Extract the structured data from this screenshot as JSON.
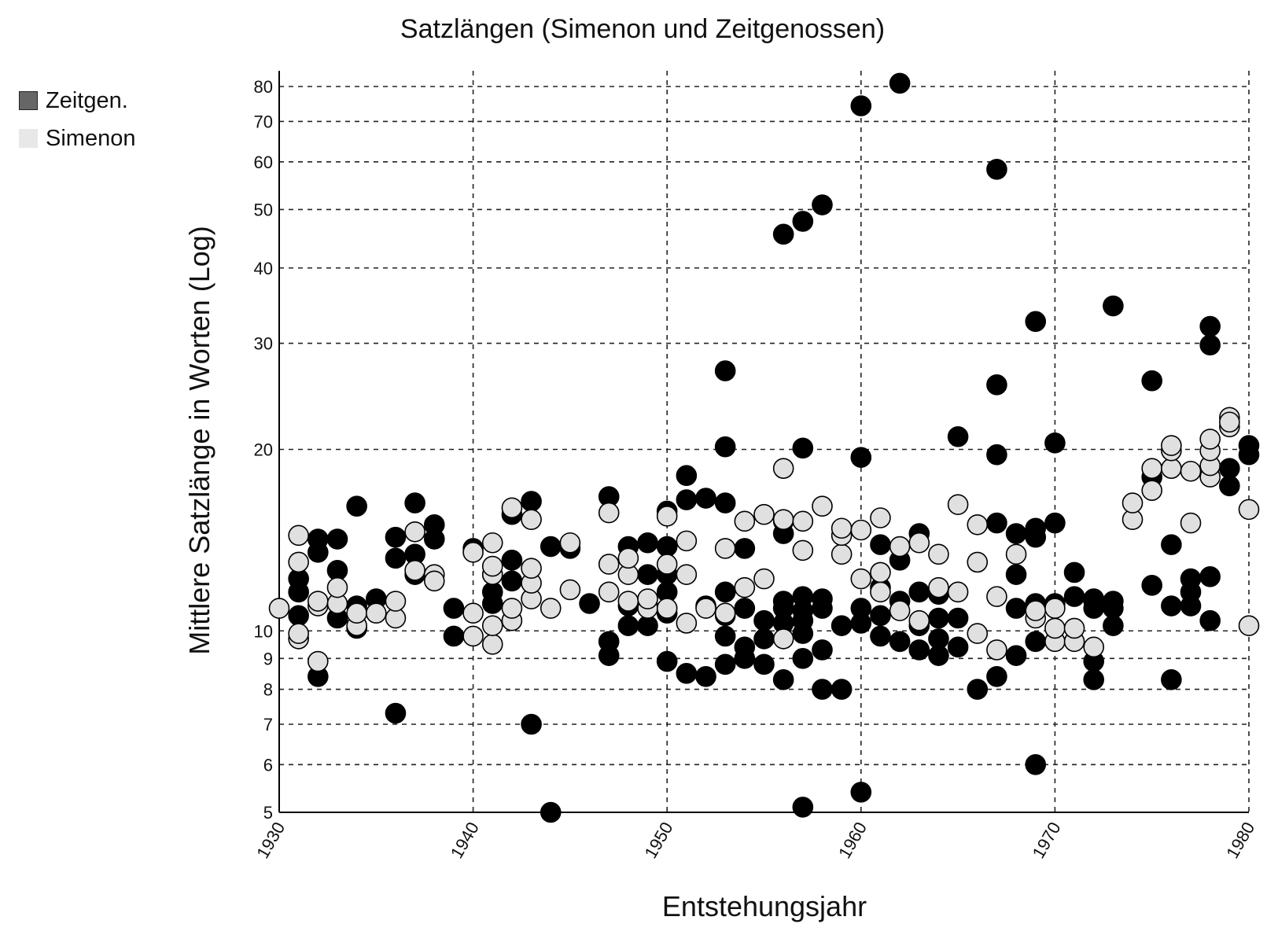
{
  "chart_data": {
    "type": "scatter",
    "title": "Satzlängen (Simenon und Zeitgenossen)",
    "xlabel": "Entstehungsjahr",
    "ylabel": "Mittlere Satzlänge in Worten (Log)",
    "xlim": [
      1930,
      1980
    ],
    "ylim": [
      5,
      82
    ],
    "y_scale": "log",
    "grid": true,
    "legend_position": "left",
    "x_ticks": [
      1930,
      1940,
      1950,
      1960,
      1970,
      1980
    ],
    "x_tick_labels": [
      "1930",
      "1940",
      "1950",
      "1960",
      "1970",
      "1980"
    ],
    "y_ticks": [
      5,
      6,
      7,
      8,
      9,
      10,
      20,
      30,
      40,
      50,
      60,
      70,
      80
    ],
    "y_tick_labels": [
      "5",
      "6",
      "7",
      "8",
      "9",
      "10",
      "20",
      "30",
      "40",
      "50",
      "60",
      "70",
      "80"
    ],
    "series": [
      {
        "name": "Zeitgen.",
        "legend_color": "#666666",
        "marker_color": "#000000",
        "points": [
          [
            1931,
            10.6
          ],
          [
            1931,
            11.6
          ],
          [
            1931,
            12.2
          ],
          [
            1932,
            8.4
          ],
          [
            1932,
            13.5
          ],
          [
            1932,
            14.2
          ],
          [
            1933,
            10.5
          ],
          [
            1933,
            12.6
          ],
          [
            1933,
            14.2
          ],
          [
            1934,
            10.1
          ],
          [
            1934,
            11.0
          ],
          [
            1934,
            16.1
          ],
          [
            1935,
            11.3
          ],
          [
            1936,
            7.3
          ],
          [
            1936,
            13.2
          ],
          [
            1936,
            14.3
          ],
          [
            1937,
            12.4
          ],
          [
            1937,
            13.4
          ],
          [
            1937,
            16.3
          ],
          [
            1938,
            14.2
          ],
          [
            1938,
            15.0
          ],
          [
            1939,
            9.8
          ],
          [
            1939,
            10.9
          ],
          [
            1940,
            13.7
          ],
          [
            1941,
            11.1
          ],
          [
            1941,
            11.6
          ],
          [
            1941,
            12.4
          ],
          [
            1942,
            12.1
          ],
          [
            1942,
            13.1
          ],
          [
            1942,
            15.6
          ],
          [
            1943,
            7.0
          ],
          [
            1943,
            16.4
          ],
          [
            1944,
            5.0
          ],
          [
            1944,
            13.8
          ],
          [
            1945,
            13.7
          ],
          [
            1946,
            11.1
          ],
          [
            1947,
            9.1
          ],
          [
            1947,
            9.6
          ],
          [
            1947,
            16.7
          ],
          [
            1948,
            10.2
          ],
          [
            1948,
            11.0
          ],
          [
            1948,
            13.8
          ],
          [
            1949,
            10.2
          ],
          [
            1949,
            11.0
          ],
          [
            1949,
            12.4
          ],
          [
            1949,
            14.0
          ],
          [
            1950,
            8.9
          ],
          [
            1950,
            10.7
          ],
          [
            1950,
            11.6
          ],
          [
            1950,
            12.4
          ],
          [
            1950,
            13.8
          ],
          [
            1950,
            15.8
          ],
          [
            1951,
            8.5
          ],
          [
            1951,
            16.5
          ],
          [
            1951,
            18.1
          ],
          [
            1952,
            8.4
          ],
          [
            1952,
            11.0
          ],
          [
            1952,
            16.6
          ],
          [
            1953,
            8.8
          ],
          [
            1953,
            9.8
          ],
          [
            1953,
            10.6
          ],
          [
            1953,
            11.6
          ],
          [
            1953,
            16.3
          ],
          [
            1953,
            20.2
          ],
          [
            1953,
            27.0
          ],
          [
            1954,
            9.0
          ],
          [
            1954,
            9.4
          ],
          [
            1954,
            10.9
          ],
          [
            1954,
            13.7
          ],
          [
            1955,
            8.8
          ],
          [
            1955,
            9.7
          ],
          [
            1955,
            10.4
          ],
          [
            1956,
            8.3
          ],
          [
            1956,
            10.3
          ],
          [
            1956,
            10.9
          ],
          [
            1956,
            11.2
          ],
          [
            1956,
            14.5
          ],
          [
            1956,
            15.2
          ],
          [
            1956,
            45.5
          ],
          [
            1957,
            5.1
          ],
          [
            1957,
            9.0
          ],
          [
            1957,
            9.9
          ],
          [
            1957,
            10.4
          ],
          [
            1957,
            10.8
          ],
          [
            1957,
            11.4
          ],
          [
            1957,
            20.1
          ],
          [
            1957,
            47.8
          ],
          [
            1958,
            8.0
          ],
          [
            1958,
            9.3
          ],
          [
            1958,
            10.9
          ],
          [
            1958,
            11.3
          ],
          [
            1958,
            50.9
          ],
          [
            1959,
            8.0
          ],
          [
            1959,
            10.2
          ],
          [
            1960,
            5.4
          ],
          [
            1960,
            10.3
          ],
          [
            1960,
            10.9
          ],
          [
            1960,
            19.4
          ],
          [
            1960,
            74.3
          ],
          [
            1961,
            9.8
          ],
          [
            1961,
            10.6
          ],
          [
            1961,
            11.8
          ],
          [
            1961,
            13.9
          ],
          [
            1962,
            9.6
          ],
          [
            1962,
            11.2
          ],
          [
            1962,
            13.1
          ],
          [
            1962,
            81.0
          ],
          [
            1963,
            9.3
          ],
          [
            1963,
            10.2
          ],
          [
            1963,
            11.6
          ],
          [
            1963,
            14.5
          ],
          [
            1964,
            9.1
          ],
          [
            1964,
            9.7
          ],
          [
            1964,
            10.5
          ],
          [
            1964,
            11.5
          ],
          [
            1965,
            9.4
          ],
          [
            1965,
            10.5
          ],
          [
            1965,
            21.0
          ],
          [
            1966,
            8.0
          ],
          [
            1967,
            8.4
          ],
          [
            1967,
            15.1
          ],
          [
            1967,
            19.6
          ],
          [
            1967,
            25.6
          ],
          [
            1967,
            58.3
          ],
          [
            1968,
            9.1
          ],
          [
            1968,
            10.9
          ],
          [
            1968,
            12.4
          ],
          [
            1968,
            14.5
          ],
          [
            1969,
            6.0
          ],
          [
            1969,
            9.6
          ],
          [
            1969,
            11.1
          ],
          [
            1969,
            14.3
          ],
          [
            1969,
            14.8
          ],
          [
            1969,
            32.6
          ],
          [
            1970,
            11.1
          ],
          [
            1970,
            15.1
          ],
          [
            1970,
            20.5
          ],
          [
            1971,
            11.4
          ],
          [
            1971,
            12.5
          ],
          [
            1972,
            8.3
          ],
          [
            1972,
            8.9
          ],
          [
            1972,
            10.9
          ],
          [
            1972,
            11.2
          ],
          [
            1972,
            11.3
          ],
          [
            1973,
            10.2
          ],
          [
            1973,
            10.9
          ],
          [
            1973,
            11.2
          ],
          [
            1973,
            34.6
          ],
          [
            1975,
            11.9
          ],
          [
            1975,
            18.0
          ],
          [
            1975,
            26.0
          ],
          [
            1976,
            8.3
          ],
          [
            1976,
            11.0
          ],
          [
            1976,
            13.9
          ],
          [
            1977,
            11.0
          ],
          [
            1977,
            11.6
          ],
          [
            1977,
            12.2
          ],
          [
            1978,
            10.4
          ],
          [
            1978,
            12.3
          ],
          [
            1978,
            29.8
          ],
          [
            1978,
            32.0
          ],
          [
            1979,
            17.4
          ],
          [
            1979,
            18.6
          ],
          [
            1980,
            19.6
          ],
          [
            1980,
            20.3
          ]
        ]
      },
      {
        "name": "Simenon",
        "legend_color": "#e8e8e8",
        "marker_color": "#e0e0e0",
        "points": [
          [
            1930,
            10.9
          ],
          [
            1931,
            9.7
          ],
          [
            1931,
            9.9
          ],
          [
            1931,
            13.0
          ],
          [
            1931,
            14.4
          ],
          [
            1932,
            8.9
          ],
          [
            1932,
            11.0
          ],
          [
            1932,
            11.2
          ],
          [
            1933,
            11.1
          ],
          [
            1933,
            11.8
          ],
          [
            1934,
            10.2
          ],
          [
            1934,
            10.7
          ],
          [
            1935,
            10.7
          ],
          [
            1936,
            10.5
          ],
          [
            1936,
            11.2
          ],
          [
            1937,
            12.6
          ],
          [
            1937,
            14.6
          ],
          [
            1938,
            12.4
          ],
          [
            1938,
            12.1
          ],
          [
            1940,
            9.8
          ],
          [
            1940,
            10.7
          ],
          [
            1940,
            13.5
          ],
          [
            1941,
            9.5
          ],
          [
            1941,
            10.2
          ],
          [
            1941,
            12.4
          ],
          [
            1941,
            12.8
          ],
          [
            1941,
            14.0
          ],
          [
            1942,
            10.4
          ],
          [
            1942,
            10.9
          ],
          [
            1942,
            16.0
          ],
          [
            1943,
            11.3
          ],
          [
            1943,
            12.0
          ],
          [
            1943,
            12.7
          ],
          [
            1943,
            15.3
          ],
          [
            1944,
            10.9
          ],
          [
            1945,
            11.7
          ],
          [
            1945,
            14.0
          ],
          [
            1947,
            11.6
          ],
          [
            1947,
            12.9
          ],
          [
            1947,
            15.7
          ],
          [
            1948,
            11.2
          ],
          [
            1948,
            12.4
          ],
          [
            1948,
            13.2
          ],
          [
            1949,
            10.9
          ],
          [
            1949,
            11.3
          ],
          [
            1950,
            10.9
          ],
          [
            1950,
            12.9
          ],
          [
            1950,
            15.5
          ],
          [
            1951,
            10.3
          ],
          [
            1951,
            12.4
          ],
          [
            1951,
            14.1
          ],
          [
            1952,
            10.9
          ],
          [
            1953,
            10.7
          ],
          [
            1953,
            13.7
          ],
          [
            1954,
            11.8
          ],
          [
            1954,
            15.2
          ],
          [
            1955,
            12.2
          ],
          [
            1955,
            15.6
          ],
          [
            1956,
            9.7
          ],
          [
            1956,
            15.3
          ],
          [
            1956,
            18.6
          ],
          [
            1957,
            13.6
          ],
          [
            1957,
            15.2
          ],
          [
            1958,
            16.1
          ],
          [
            1959,
            13.4
          ],
          [
            1959,
            14.4
          ],
          [
            1959,
            14.8
          ],
          [
            1960,
            12.2
          ],
          [
            1960,
            14.7
          ],
          [
            1961,
            11.6
          ],
          [
            1961,
            12.5
          ],
          [
            1961,
            15.4
          ],
          [
            1962,
            10.8
          ],
          [
            1962,
            13.8
          ],
          [
            1963,
            10.4
          ],
          [
            1963,
            14.0
          ],
          [
            1964,
            11.8
          ],
          [
            1964,
            13.4
          ],
          [
            1965,
            11.6
          ],
          [
            1965,
            16.2
          ],
          [
            1966,
            9.9
          ],
          [
            1966,
            13.0
          ],
          [
            1966,
            15.0
          ],
          [
            1967,
            9.3
          ],
          [
            1967,
            11.4
          ],
          [
            1968,
            13.4
          ],
          [
            1969,
            10.5
          ],
          [
            1969,
            10.8
          ],
          [
            1970,
            9.6
          ],
          [
            1970,
            10.1
          ],
          [
            1970,
            10.9
          ],
          [
            1971,
            9.6
          ],
          [
            1971,
            10.1
          ],
          [
            1972,
            9.4
          ],
          [
            1974,
            15.3
          ],
          [
            1974,
            16.3
          ],
          [
            1975,
            17.1
          ],
          [
            1975,
            18.6
          ],
          [
            1976,
            18.6
          ],
          [
            1976,
            19.9
          ],
          [
            1976,
            20.3
          ],
          [
            1977,
            15.1
          ],
          [
            1977,
            18.4
          ],
          [
            1978,
            18.0
          ],
          [
            1978,
            18.8
          ],
          [
            1978,
            19.9
          ],
          [
            1978,
            20.8
          ],
          [
            1979,
            21.8
          ],
          [
            1979,
            22.6
          ],
          [
            1979,
            22.2
          ],
          [
            1980,
            10.2
          ],
          [
            1980,
            15.9
          ]
        ]
      }
    ]
  }
}
